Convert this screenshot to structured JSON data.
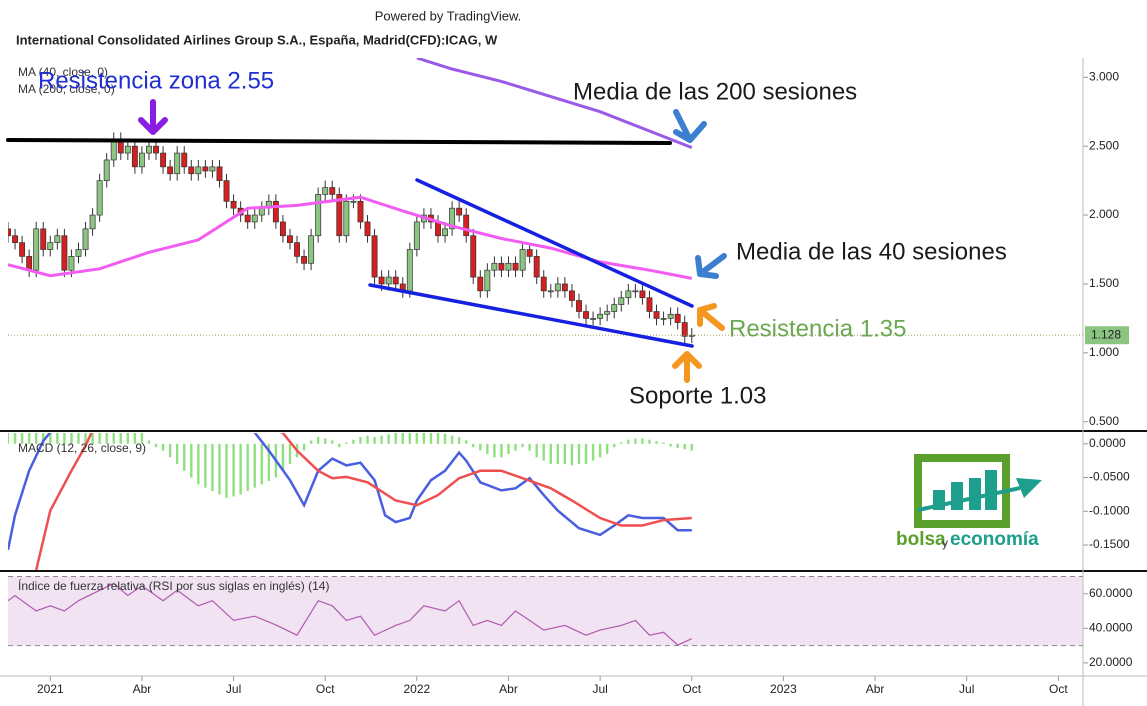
{
  "header": {
    "powered_by": "Powered by TradingView.",
    "title": "International Consolidated Airlines Group S.A., España, Madrid(CFD):ICAG, W"
  },
  "chart_data": [
    {
      "type": "candlestick",
      "x": [
        -6,
        -5,
        -4,
        -3,
        -2,
        -1,
        0,
        1,
        2,
        3,
        4,
        5,
        6,
        7,
        8,
        9,
        10,
        11,
        12,
        13,
        14,
        15,
        16,
        17,
        18,
        19,
        20,
        21,
        22,
        23,
        24,
        25,
        26,
        27,
        28,
        29,
        30,
        31,
        32,
        33,
        34,
        35,
        36,
        37,
        38,
        39,
        40,
        41,
        42,
        43,
        44,
        45,
        46,
        47,
        48,
        49,
        50,
        51,
        52,
        53,
        54,
        55,
        56,
        57,
        58,
        59,
        60,
        61,
        62,
        63,
        64,
        65,
        66,
        67,
        68,
        69,
        70,
        71,
        72,
        73,
        74,
        75,
        76,
        77,
        78,
        79,
        80,
        81,
        82,
        83,
        84,
        85,
        86,
        87,
        88,
        89,
        90,
        91
      ],
      "open": [
        1.9,
        1.85,
        1.8,
        1.7,
        1.6,
        1.9,
        1.75,
        1.8,
        1.85,
        1.6,
        1.7,
        1.75,
        1.9,
        2.0,
        2.25,
        2.4,
        2.55,
        2.45,
        2.5,
        2.35,
        2.45,
        2.5,
        2.45,
        2.35,
        2.3,
        2.45,
        2.35,
        2.3,
        2.35,
        2.32,
        2.35,
        2.25,
        2.1,
        2.05,
        2.0,
        1.95,
        2.0,
        2.05,
        2.1,
        1.95,
        1.85,
        1.8,
        1.7,
        1.65,
        1.85,
        2.15,
        2.2,
        2.15,
        1.85,
        2.1,
        2.1,
        1.95,
        1.85,
        1.55,
        1.5,
        1.55,
        1.5,
        1.45,
        1.75,
        1.95,
        2.0,
        1.95,
        1.85,
        1.9,
        2.05,
        2.0,
        1.85,
        1.55,
        1.45,
        1.6,
        1.65,
        1.6,
        1.65,
        1.6,
        1.75,
        1.7,
        1.55,
        1.45,
        1.45,
        1.5,
        1.45,
        1.38,
        1.3,
        1.25,
        1.25,
        1.28,
        1.3,
        1.35,
        1.4,
        1.45,
        1.45,
        1.4,
        1.3,
        1.25,
        1.25,
        1.28,
        1.22,
        1.12
      ],
      "high": [
        1.95,
        1.9,
        1.85,
        1.75,
        1.95,
        1.95,
        1.85,
        1.9,
        1.9,
        1.75,
        1.8,
        1.95,
        2.05,
        2.3,
        2.45,
        2.6,
        2.6,
        2.55,
        2.55,
        2.5,
        2.55,
        2.55,
        2.5,
        2.4,
        2.5,
        2.5,
        2.4,
        2.4,
        2.4,
        2.4,
        2.4,
        2.3,
        2.15,
        2.1,
        2.05,
        2.05,
        2.1,
        2.15,
        2.15,
        2.0,
        1.9,
        1.85,
        1.75,
        1.9,
        2.2,
        2.25,
        2.25,
        2.2,
        2.15,
        2.15,
        2.15,
        2.0,
        1.9,
        1.6,
        1.6,
        1.6,
        1.55,
        1.8,
        2.0,
        2.05,
        2.05,
        2.0,
        1.95,
        2.1,
        2.1,
        2.05,
        1.9,
        1.6,
        1.65,
        1.7,
        1.7,
        1.7,
        1.7,
        1.8,
        1.8,
        1.75,
        1.6,
        1.5,
        1.55,
        1.55,
        1.5,
        1.43,
        1.35,
        1.3,
        1.33,
        1.35,
        1.4,
        1.45,
        1.5,
        1.5,
        1.5,
        1.45,
        1.35,
        1.3,
        1.33,
        1.33,
        1.27,
        1.18
      ],
      "low": [
        1.8,
        1.75,
        1.65,
        1.55,
        1.55,
        1.7,
        1.7,
        1.75,
        1.55,
        1.55,
        1.65,
        1.7,
        1.85,
        1.95,
        2.2,
        2.35,
        2.4,
        2.4,
        2.3,
        2.3,
        2.4,
        2.4,
        2.3,
        2.25,
        2.25,
        2.3,
        2.25,
        2.25,
        2.27,
        2.27,
        2.2,
        2.05,
        2.0,
        1.95,
        1.9,
        1.9,
        1.95,
        2.0,
        1.9,
        1.8,
        1.75,
        1.65,
        1.6,
        1.6,
        1.8,
        2.1,
        2.1,
        1.8,
        1.8,
        2.05,
        1.9,
        1.8,
        1.5,
        1.45,
        1.45,
        1.45,
        1.4,
        1.4,
        1.7,
        1.9,
        1.9,
        1.8,
        1.8,
        1.85,
        1.95,
        1.8,
        1.5,
        1.4,
        1.4,
        1.55,
        1.55,
        1.55,
        1.55,
        1.55,
        1.65,
        1.5,
        1.4,
        1.4,
        1.4,
        1.4,
        1.33,
        1.25,
        1.2,
        1.2,
        1.2,
        1.23,
        1.25,
        1.3,
        1.35,
        1.4,
        1.35,
        1.25,
        1.2,
        1.2,
        1.2,
        1.17,
        1.07,
        1.07
      ],
      "close": [
        1.85,
        1.8,
        1.7,
        1.6,
        1.9,
        1.75,
        1.8,
        1.85,
        1.6,
        1.7,
        1.75,
        1.9,
        2.0,
        2.25,
        2.4,
        2.55,
        2.45,
        2.5,
        2.35,
        2.45,
        2.5,
        2.45,
        2.35,
        2.3,
        2.45,
        2.35,
        2.3,
        2.35,
        2.32,
        2.35,
        2.25,
        2.1,
        2.05,
        2.0,
        1.95,
        2.0,
        2.05,
        2.1,
        1.95,
        1.85,
        1.8,
        1.7,
        1.65,
        1.85,
        2.15,
        2.2,
        2.15,
        1.85,
        2.1,
        2.1,
        1.95,
        1.85,
        1.55,
        1.5,
        1.55,
        1.5,
        1.45,
        1.75,
        1.95,
        2.0,
        1.95,
        1.85,
        1.9,
        2.05,
        2.0,
        1.85,
        1.55,
        1.45,
        1.6,
        1.65,
        1.6,
        1.65,
        1.6,
        1.75,
        1.7,
        1.55,
        1.45,
        1.45,
        1.5,
        1.45,
        1.38,
        1.3,
        1.25,
        1.25,
        1.28,
        1.3,
        1.35,
        1.4,
        1.45,
        1.45,
        1.4,
        1.3,
        1.25,
        1.25,
        1.28,
        1.22,
        1.12,
        1.128
      ],
      "up_color": "#8cc481",
      "down_color": "#d42020",
      "lines": [
        {
          "name": "MA (40, close, 0)",
          "color": "#f25cf2",
          "x": [
            -6,
            0,
            7,
            14,
            21,
            28,
            35,
            44,
            50,
            57,
            64,
            71,
            78,
            85,
            91
          ],
          "values": [
            1.64,
            1.56,
            1.61,
            1.73,
            1.82,
            2.05,
            2.07,
            2.13,
            2.03,
            1.92,
            1.83,
            1.76,
            1.66,
            1.6,
            1.54
          ]
        },
        {
          "name": "MA (200, close, 0)",
          "color": "#9a5ae8",
          "x": [
            52,
            57,
            64,
            71,
            78,
            85,
            91
          ],
          "values": [
            3.14,
            3.06,
            2.97,
            2.86,
            2.75,
            2.61,
            2.49
          ]
        }
      ],
      "xlim": [
        -6,
        146.5
      ],
      "ylim": [
        0.44,
        3.14
      ],
      "yticks": [
        {
          "value": 3,
          "label": "3.000"
        },
        {
          "value": 2.5,
          "label": "2.500"
        },
        {
          "value": 2,
          "label": "2.000"
        },
        {
          "value": 1.5,
          "label": "1.500"
        },
        {
          "value": 1,
          "label": "1.000"
        },
        {
          "value": 0.5,
          "label": "0.500"
        }
      ],
      "last_price_color": "#8cc481"
    },
    {
      "type": "macd",
      "title": "MACD (12, 26, close, 9)",
      "histogram": {
        "color": "#8fe07f",
        "x": [
          -6,
          -5,
          -4,
          -3,
          -2,
          -1,
          0,
          1,
          2,
          3,
          4,
          5,
          6,
          7,
          8,
          9,
          10,
          11,
          12,
          13,
          14,
          15,
          16,
          17,
          18,
          19,
          20,
          21,
          22,
          23,
          24,
          25,
          26,
          27,
          28,
          29,
          30,
          31,
          32,
          33,
          34,
          35,
          36,
          37,
          38,
          39,
          40,
          41,
          42,
          43,
          44,
          45,
          46,
          47,
          48,
          49,
          50,
          51,
          52,
          53,
          54,
          55,
          56,
          57,
          58,
          59,
          60,
          61,
          62,
          63,
          64,
          65,
          66,
          67,
          68,
          69,
          70,
          71,
          72,
          73,
          74,
          75,
          76,
          77,
          78,
          79,
          80,
          81,
          82,
          83,
          84,
          85,
          86,
          87,
          88,
          89,
          90,
          91
        ],
        "values": [
          0.03,
          0.03,
          0.03,
          0.03,
          0.03,
          0.03,
          0.03,
          0.03,
          0.03,
          0.03,
          0.03,
          0.03,
          0.03,
          0.03,
          0.03,
          0.03,
          0.03,
          0.03,
          0.03,
          0.03,
          0.005,
          -0.005,
          -0.01,
          -0.02,
          -0.03,
          -0.04,
          -0.05,
          -0.06,
          -0.065,
          -0.07,
          -0.075,
          -0.08,
          -0.078,
          -0.075,
          -0.07,
          -0.065,
          -0.06,
          -0.055,
          -0.05,
          -0.04,
          -0.03,
          -0.02,
          -0.01,
          0.005,
          0.01,
          0.008,
          0.005,
          -0.005,
          0.002,
          0.006,
          0.01,
          0.012,
          0.01,
          0.012,
          0.014,
          0.016,
          0.018,
          0.02,
          0.02,
          0.02,
          0.02,
          0.018,
          0.015,
          0.012,
          0.01,
          0.005,
          -0.005,
          -0.01,
          -0.015,
          -0.02,
          -0.02,
          -0.015,
          -0.01,
          -0.005,
          -0.01,
          -0.02,
          -0.025,
          -0.03,
          -0.03,
          -0.03,
          -0.032,
          -0.03,
          -0.03,
          -0.025,
          -0.02,
          -0.015,
          -0.005,
          0.002,
          0.006,
          0.008,
          0.008,
          0.006,
          0.004,
          0.002,
          -0.004,
          -0.006,
          -0.008,
          -0.01
        ]
      },
      "series": [
        {
          "color": "#4a5ee0",
          "x": [
            -6,
            -5,
            -3,
            -1,
            1,
            5,
            10,
            20,
            28,
            31,
            34,
            36,
            38,
            40,
            42,
            44,
            46,
            47.5,
            49,
            51,
            52,
            54,
            56,
            58,
            59,
            61,
            64,
            66,
            68,
            70,
            72,
            75,
            78,
            80,
            82,
            84,
            87,
            89,
            91
          ],
          "values": [
            -0.157,
            -0.106,
            -0.04,
            0.004,
            0.03,
            0.04,
            0.04,
            0.04,
            0.03,
            -0.01,
            -0.054,
            -0.091,
            -0.04,
            -0.022,
            -0.032,
            -0.028,
            -0.054,
            -0.106,
            -0.116,
            -0.11,
            -0.084,
            -0.054,
            -0.04,
            -0.013,
            -0.025,
            -0.057,
            -0.069,
            -0.066,
            -0.051,
            -0.076,
            -0.099,
            -0.125,
            -0.135,
            -0.121,
            -0.106,
            -0.11,
            -0.11,
            -0.128,
            -0.128
          ]
        },
        {
          "color": "#f04f4f",
          "x": [
            -2,
            0,
            3,
            5,
            6,
            15,
            25,
            33,
            35,
            38,
            40,
            42,
            45,
            49,
            52,
            55,
            58,
            61,
            64,
            67,
            71,
            74,
            78,
            81,
            84,
            87,
            91
          ],
          "values": [
            -0.187,
            -0.099,
            -0.04,
            -0.003,
            0.02,
            0.05,
            0.05,
            0.016,
            -0.01,
            -0.04,
            -0.051,
            -0.049,
            -0.057,
            -0.084,
            -0.091,
            -0.076,
            -0.051,
            -0.04,
            -0.04,
            -0.051,
            -0.066,
            -0.084,
            -0.11,
            -0.121,
            -0.121,
            -0.113,
            -0.11
          ]
        }
      ],
      "xlim": [
        -6,
        146.5
      ],
      "ylim": [
        -0.187,
        0.016
      ],
      "yticks": [
        {
          "value": 0,
          "label": "0.0000"
        },
        {
          "value": -0.05,
          "label": "-0.0500"
        },
        {
          "value": -0.1,
          "label": "-0.1000"
        },
        {
          "value": -0.15,
          "label": "-0.1500"
        }
      ]
    },
    {
      "type": "line",
      "title": "Índice de fuerza relativa (RSI por sus siglas en inglés) (14)",
      "series": [
        {
          "color": "#b05ab0",
          "x": [
            -6,
            -5,
            -2,
            0,
            2,
            4,
            7,
            9,
            11,
            13,
            16,
            18,
            21,
            23,
            26,
            29,
            32,
            35,
            38,
            40,
            42,
            44,
            46,
            49,
            51,
            53,
            56,
            58,
            60,
            62,
            64,
            66,
            68,
            70,
            73,
            76,
            78,
            81,
            83,
            85,
            87,
            89,
            91
          ],
          "values": [
            56,
            58.9,
            50,
            53,
            50,
            56,
            62,
            66,
            59,
            64.6,
            56,
            62,
            53,
            56,
            44.6,
            47,
            42,
            36,
            56,
            53,
            44.6,
            47,
            36,
            41.7,
            44.6,
            53,
            50,
            56,
            41.7,
            44.6,
            41.7,
            50,
            44.6,
            39,
            41.7,
            36,
            39,
            41.7,
            44.6,
            36,
            37.7,
            30.3,
            34
          ]
        }
      ],
      "bands": [
        30,
        70
      ],
      "band_color": "#f1e3f2",
      "xlim": [
        -6,
        146.5
      ],
      "ylim": [
        13,
        72
      ],
      "yticks": [
        {
          "value": 60,
          "label": "60.0000"
        },
        {
          "value": 40,
          "label": "40.0000"
        },
        {
          "value": 20,
          "label": "20.0000"
        }
      ],
      "xticks": [
        {
          "value": 0,
          "label": "2021"
        },
        {
          "value": 13,
          "label": "Abr"
        },
        {
          "value": 26,
          "label": "Jul"
        },
        {
          "value": 39,
          "label": "Oct"
        },
        {
          "value": 52,
          "label": "2022"
        },
        {
          "value": 65,
          "label": "Abr"
        },
        {
          "value": 78,
          "label": "Jul"
        },
        {
          "value": 91,
          "label": "Oct"
        },
        {
          "value": 104,
          "label": "2023"
        },
        {
          "value": 117,
          "label": "Abr"
        },
        {
          "value": 130,
          "label": "Jul"
        },
        {
          "value": 143,
          "label": "Oct"
        }
      ]
    }
  ],
  "annotations": [
    {
      "text": "Resistencia zona 2.55",
      "color": "#1f2fd0"
    },
    {
      "text": "Media de las 200 sesiones",
      "color": "#1a1a1a"
    },
    {
      "text": "Media de las 40 sesiones",
      "color": "#1a1a1a"
    },
    {
      "text": "Resistencia 1.35",
      "color": "#6aa84f"
    },
    {
      "text": "Soporte 1.03",
      "color": "#1a1a1a"
    }
  ],
  "logo": {
    "left": "bolsa",
    "middle": "y",
    "right": "economía"
  }
}
